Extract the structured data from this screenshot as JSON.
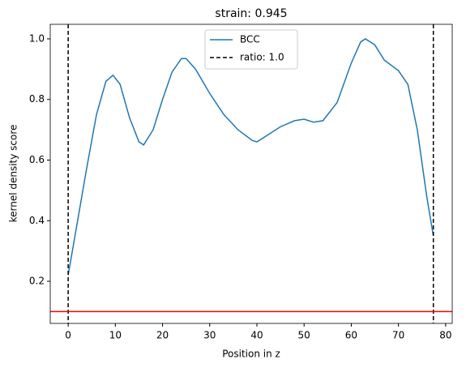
{
  "chart_data": {
    "type": "line",
    "title": "strain: 0.945",
    "xlabel": "Position in z",
    "ylabel": "kernel density score",
    "x": [
      0,
      2,
      4,
      6,
      8,
      9.5,
      11,
      13,
      15,
      16,
      18,
      20,
      22,
      24,
      25,
      27,
      30,
      33,
      36,
      39,
      40,
      42,
      45,
      48,
      50,
      52,
      54,
      57,
      60,
      62,
      63,
      65,
      67,
      70,
      72,
      74,
      76,
      77.4
    ],
    "series": [
      {
        "name": "BCC",
        "color": "#1f77b4",
        "values": [
          0.22,
          0.4,
          0.58,
          0.75,
          0.86,
          0.88,
          0.85,
          0.74,
          0.66,
          0.65,
          0.7,
          0.8,
          0.89,
          0.935,
          0.935,
          0.9,
          0.82,
          0.75,
          0.7,
          0.665,
          0.66,
          0.68,
          0.71,
          0.73,
          0.735,
          0.725,
          0.73,
          0.79,
          0.92,
          0.99,
          1.0,
          0.98,
          0.93,
          0.895,
          0.85,
          0.7,
          0.48,
          0.35
        ]
      }
    ],
    "vlines": {
      "name": "ratio: 1.0",
      "color": "#000000",
      "x": [
        0,
        77.4
      ]
    },
    "hline": {
      "y": 0.1,
      "color": "#ff0000"
    },
    "xlim": [
      -3.8,
      81.4
    ],
    "ylim": [
      0.061,
      1.048
    ],
    "xticks": [
      0,
      10,
      20,
      30,
      40,
      50,
      60,
      70,
      80
    ],
    "yticks": [
      0.2,
      0.4,
      0.6,
      0.8,
      {
        "value": 1,
        "label": "1.0"
      }
    ],
    "legend": "upper center"
  }
}
